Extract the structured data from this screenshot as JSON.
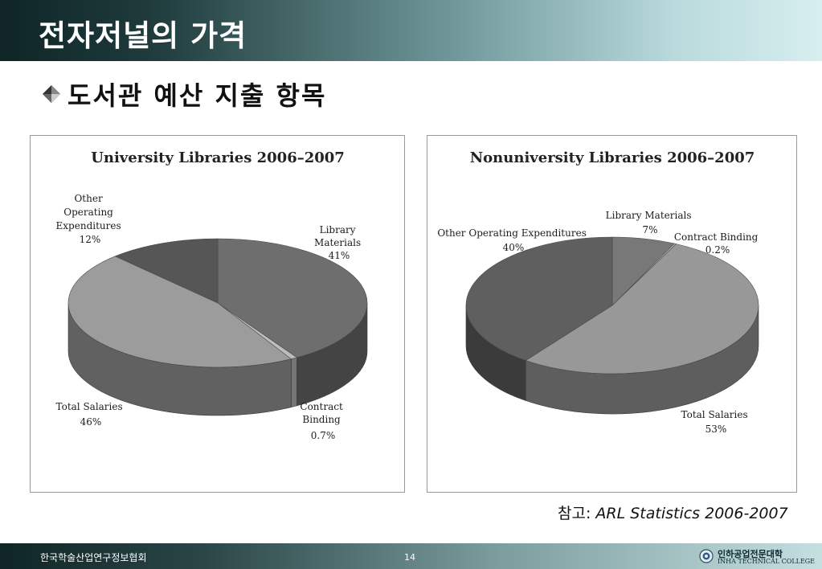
{
  "slide": {
    "title": "전자저널의 가격",
    "subtitle": "도서관 예산 지출 항목",
    "source_prefix": "참고: ",
    "source_text": "ARL Statistics 2006-2007",
    "page_number": "14",
    "footer_org": "한국학술산업연구정보협회",
    "college_kr": "인하공업전문대학",
    "college_en": "INHA TECHNICAL COLLEGE"
  },
  "chart_data": [
    {
      "type": "pie",
      "title": "University Libraries 2006–2007",
      "slices": [
        {
          "label": [
            "Library",
            "Materials",
            "41%"
          ],
          "value": 41,
          "color": "#6e6e6e"
        },
        {
          "label": [
            "Contract",
            "Binding",
            "0.7%"
          ],
          "value": 0.7,
          "color": "#bdbdbd"
        },
        {
          "label": [
            "Total Salaries",
            "46%"
          ],
          "value": 46,
          "color": "#9c9c9c"
        },
        {
          "label": [
            "Other",
            "Operating",
            "Expenditures",
            "12%"
          ],
          "value": 12,
          "color": "#565656"
        }
      ],
      "legend": "none"
    },
    {
      "type": "pie",
      "title": "Nonuniversity Libraries 2006–2007",
      "slices": [
        {
          "label": [
            "Library Materials",
            "7%"
          ],
          "value": 7,
          "color": "#787878"
        },
        {
          "label": [
            "Contract Binding",
            "0.2%"
          ],
          "value": 0.2,
          "color": "#c4c4c4"
        },
        {
          "label": [
            "Total Salaries",
            "53%"
          ],
          "value": 53,
          "color": "#989898"
        },
        {
          "label": [
            "Other Operating Expenditures",
            "40%"
          ],
          "value": 40,
          "color": "#5f5f5f"
        }
      ],
      "legend": "none"
    }
  ]
}
